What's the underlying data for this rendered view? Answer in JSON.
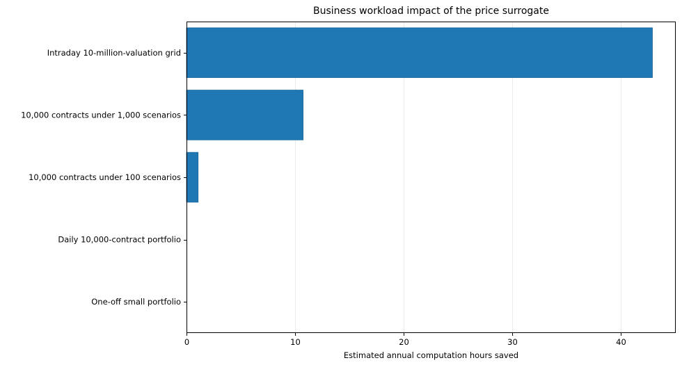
{
  "chart_data": {
    "type": "bar",
    "orientation": "horizontal",
    "title": "Business workload impact of the price surrogate",
    "xlabel": "Estimated annual computation hours saved",
    "ylabel": "",
    "categories": [
      "Intraday 10-million-valuation grid",
      "10,000 contracts under 1,000 scenarios",
      "10,000 contracts under 100 scenarios",
      "Daily 10,000-contract portfolio",
      "One-off small portfolio"
    ],
    "values": [
      42.95,
      10.75,
      1.07,
      0.01,
      0.0
    ],
    "xlim": [
      0,
      45.1
    ],
    "xticks": [
      0,
      10,
      20,
      30,
      40
    ],
    "grid": "x",
    "legend": "none",
    "colors": {
      "bar": "#1f77b4",
      "bar_edge": "#1a659a",
      "grid": "#ebebeb",
      "axis": "#000000"
    }
  }
}
